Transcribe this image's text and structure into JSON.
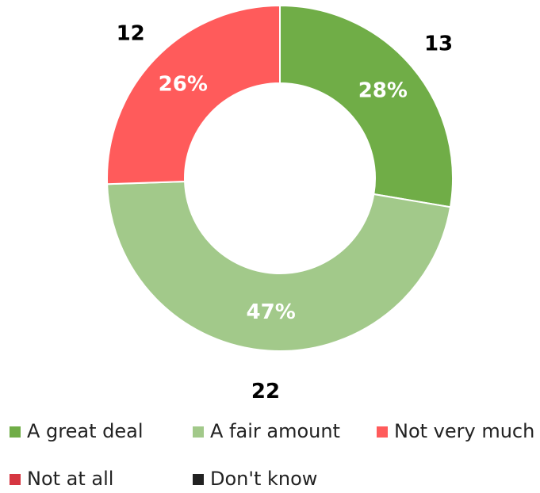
{
  "chart_data": {
    "type": "donut",
    "categories": [
      "A great deal",
      "A fair amount",
      "Not very much",
      "Not at all",
      "Don't know"
    ],
    "values": [
      13,
      22,
      12,
      0,
      0
    ],
    "percent_labels": [
      "28%",
      "47%",
      "26%",
      null,
      null
    ],
    "colors": [
      "#70ad47",
      "#a2c98a",
      "#ff5b5b",
      "#d63641",
      "#222222"
    ],
    "legend": "bottom"
  }
}
